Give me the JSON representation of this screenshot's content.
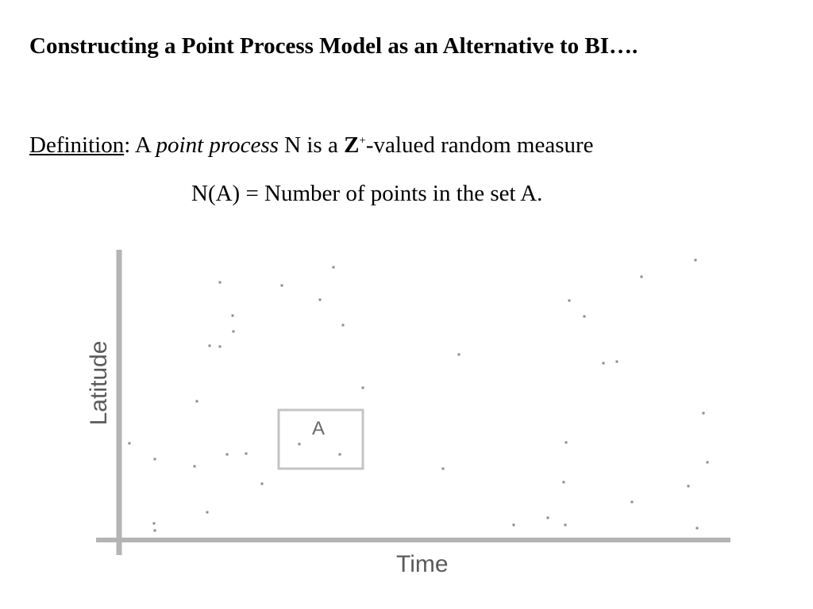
{
  "slide": {
    "title": "Constructing a Point Process Model as an Alternative to BI….",
    "definition": {
      "term": "Definition",
      "sep": ": A ",
      "italic_phrase": "point process",
      "mid": " N is a ",
      "bold_symbol": "Z",
      "superscript": "+",
      "tail": "-valued random measure"
    },
    "formula": "N(A) = Number of points in the set A."
  },
  "figure": {
    "x_axis_label": "Time",
    "y_axis_label": "Latitude",
    "set_label": "A",
    "colors": {
      "axis": "#b4b4b4",
      "points": "#8c8c8c",
      "set_border": "#c4c4c4"
    },
    "points": [
      [
        277,
        356
      ],
      [
        355,
        360
      ],
      [
        420,
        337
      ],
      [
        403,
        378
      ],
      [
        432,
        410
      ],
      [
        293,
        398
      ],
      [
        294,
        418
      ],
      [
        264,
        436
      ],
      [
        277,
        437
      ],
      [
        457,
        489
      ],
      [
        248,
        506
      ],
      [
        163,
        559
      ],
      [
        195,
        579
      ],
      [
        245,
        588
      ],
      [
        286,
        573
      ],
      [
        310,
        572
      ],
      [
        330,
        610
      ],
      [
        261,
        646
      ],
      [
        194,
        660
      ],
      [
        195,
        669
      ],
      [
        377,
        560
      ],
      [
        428,
        573
      ],
      [
        578,
        447
      ],
      [
        558,
        591
      ],
      [
        647,
        662
      ],
      [
        690,
        653
      ],
      [
        712,
        662
      ],
      [
        710,
        608
      ],
      [
        713,
        558
      ],
      [
        717,
        379
      ],
      [
        736,
        399
      ],
      [
        760,
        458
      ],
      [
        777,
        456
      ],
      [
        808,
        349
      ],
      [
        876,
        328
      ],
      [
        886,
        521
      ],
      [
        891,
        583
      ],
      [
        867,
        613
      ],
      [
        796,
        633
      ],
      [
        878,
        666
      ]
    ]
  }
}
